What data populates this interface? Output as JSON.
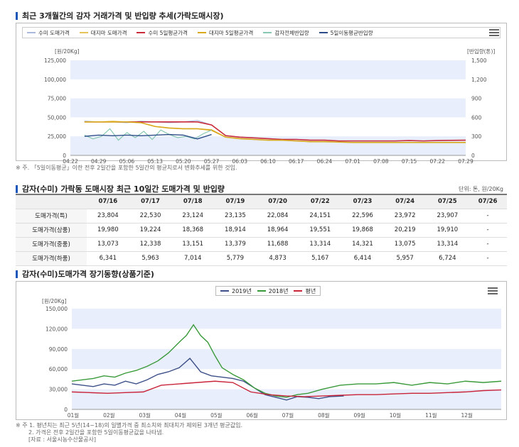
{
  "section1": {
    "title": "최근 3개월간의 감자 거래가격 및 반입량 추세(가락도매시장)",
    "note": "※ 주. 「5일이동평균」이란 전후 2일간을 포함한 5일간의 평균치로서 변화추세를 위한 것임."
  },
  "section2": {
    "title": "감자(수미) 가락동 도매시장 최근 10일간 도매가격 및 반입량",
    "unit": "단위: 톤, 원/20Kg",
    "headers": [
      "",
      "07/16",
      "07/17",
      "07/18",
      "07/19",
      "07/20",
      "07/22",
      "07/23",
      "07/24",
      "07/25",
      "07/26"
    ],
    "rows": [
      {
        "label": "도매가격(특)",
        "values": [
          "23,804",
          "22,530",
          "23,124",
          "23,135",
          "22,084",
          "24,151",
          "22,596",
          "23,972",
          "23,907",
          "-"
        ]
      },
      {
        "label": "도매가격(상품)",
        "values": [
          "19,980",
          "19,224",
          "18,368",
          "18,914",
          "18,964",
          "19,551",
          "19,868",
          "20,219",
          "19,910",
          "-"
        ]
      },
      {
        "label": "도매가격(중품)",
        "values": [
          "13,073",
          "12,338",
          "13,151",
          "13,379",
          "11,688",
          "13,314",
          "14,321",
          "13,075",
          "13,314",
          "-"
        ]
      },
      {
        "label": "도매가격(하품)",
        "values": [
          "6,341",
          "5,963",
          "7,014",
          "5,779",
          "4,873",
          "5,167",
          "6,414",
          "5,957",
          "6,724",
          "-"
        ]
      }
    ]
  },
  "section3": {
    "title": "감자(수미)도매가격 장기동향(상품기준)",
    "note1": "※ 주 1. 평년치는 최근 5년(14~18)의 일별가격 중 최소치와 최대치가 제외된 3개년 평균값임.",
    "note2": "2. 가격은 전후 2일간을 포함한 5일이동평균값을 나타냄.",
    "note3": "[자료 : 서울시농수산물공사]"
  },
  "colors": {
    "sumi": "#aab8dd",
    "daejima": "#e8c35a",
    "sumi_ma": "#c92b3a",
    "daejima_ma": "#d9a71a",
    "arrival": "#88c8b0",
    "arrival_ma": "#2c4d8a",
    "y2019": "#3d4f88",
    "y2018": "#3a9a3a",
    "normal": "#c9243a",
    "band": "#e8eefb"
  },
  "chart_data": [
    {
      "type": "line",
      "legend": [
        "수미 도매가격",
        "대지마 도매가격",
        "수미 5일평균가격",
        "대지마 5일평균가격",
        "감자전체반입량",
        "5일이동평균반입량"
      ],
      "ylabel": "[원/20Kg]",
      "ylabel_right": "[반입량(톤)]",
      "y_ticks": [
        "0",
        "25,000",
        "50,000",
        "75,000",
        "100,000",
        "125,000"
      ],
      "y2_ticks": [
        "0",
        "300",
        "600",
        "900",
        "1,200",
        "1,500"
      ],
      "ylim": [
        0,
        125000
      ],
      "y2lim": [
        0,
        1500
      ],
      "x_ticks": [
        "04.22",
        "04.29",
        "05.06",
        "05.13",
        "05.20",
        "05.27",
        "06.03",
        "06.10",
        "06.17",
        "06.24",
        "07.01",
        "07.08",
        "07.15",
        "07.22",
        "07.29"
      ],
      "series": [
        {
          "name": "수미 도매가격",
          "axis": "left",
          "x": [
            0.5,
            1,
            1.5,
            2,
            2.5,
            3,
            3.5,
            4,
            4.5,
            5,
            5.5,
            6,
            6.5,
            7,
            7.5,
            8,
            8.5,
            9,
            9.5,
            10,
            10.5,
            11,
            11.5,
            12,
            12.5,
            13,
            13.5,
            14
          ],
          "values": [
            45000,
            44000,
            44000,
            43000,
            45000,
            44000,
            43000,
            44000,
            46000,
            40000,
            26000,
            24000,
            23000,
            22000,
            21000,
            21000,
            20000,
            20000,
            19000,
            19000,
            19000,
            19000,
            19000,
            19500,
            19000,
            19500,
            19800,
            20000
          ]
        },
        {
          "name": "대지마 도매가격",
          "axis": "left",
          "x": [
            0.5,
            1,
            1.5,
            2,
            2.5,
            3,
            3.5,
            4,
            4.5,
            5,
            5.5,
            6,
            6.5,
            7,
            7.5,
            8,
            8.5,
            9,
            9.5,
            10,
            10.5,
            11,
            11.5,
            12,
            12.5,
            13,
            13.5,
            14
          ],
          "values": [
            44000,
            44000,
            45000,
            44000,
            43000,
            38000,
            36000,
            35000,
            35000,
            34000,
            24000,
            22000,
            21000,
            20000,
            20000,
            19000,
            18000,
            18000,
            17500,
            17000,
            17000,
            17000,
            17000,
            17000,
            17000,
            17000,
            17000,
            17000
          ]
        },
        {
          "name": "수미 5일평균가격",
          "axis": "left",
          "x": [
            0.5,
            1,
            1.5,
            2,
            2.5,
            3,
            3.5,
            4,
            4.5,
            5,
            5.5,
            6,
            6.5,
            7,
            7.5,
            8,
            8.5,
            9,
            9.5,
            10,
            10.5,
            11,
            11.5,
            12,
            12.5,
            13,
            13.5,
            14
          ],
          "values": [
            44000,
            44000,
            44000,
            44000,
            44000,
            44000,
            44000,
            44000,
            44000,
            40000,
            26000,
            24000,
            23000,
            22000,
            21000,
            21000,
            20000,
            20000,
            19000,
            19000,
            19000,
            19000,
            19000,
            19500,
            19000,
            19500,
            19800,
            20000
          ]
        },
        {
          "name": "대지마 5일평균가격",
          "axis": "left",
          "x": [
            0.5,
            1,
            1.5,
            2,
            2.5,
            3,
            3.5,
            4,
            4.5,
            5,
            5.5,
            6,
            6.5,
            7,
            7.5,
            8,
            8.5,
            9,
            9.5,
            10,
            10.5,
            11,
            11.5,
            12,
            12.5,
            13,
            13.5,
            14
          ],
          "values": [
            44000,
            44000,
            44000,
            44000,
            43000,
            38000,
            36000,
            35000,
            35000,
            33000,
            24000,
            22000,
            21000,
            20000,
            20000,
            19000,
            18000,
            18000,
            17500,
            17000,
            17000,
            17000,
            17000,
            17000,
            17000,
            17000,
            17000,
            17000
          ]
        },
        {
          "name": "감자전체반입량",
          "axis": "right",
          "x": [
            0.5,
            0.8,
            1.1,
            1.4,
            1.7,
            2,
            2.3,
            2.6,
            2.9,
            3.2,
            3.5,
            3.8,
            4.1,
            4.4,
            4.7,
            5
          ],
          "values": [
            320,
            260,
            300,
            420,
            240,
            360,
            280,
            380,
            250,
            400,
            330,
            280,
            300,
            260,
            340,
            400
          ]
        },
        {
          "name": "5일이동평균반입량",
          "axis": "right",
          "x": [
            0.5,
            1,
            1.5,
            2,
            2.5,
            3,
            3.5,
            4,
            4.5,
            5
          ],
          "values": [
            300,
            320,
            310,
            320,
            310,
            320,
            330,
            320,
            260,
            330
          ]
        }
      ]
    },
    {
      "type": "line",
      "legend": [
        "2019년",
        "2018년",
        "평년"
      ],
      "ylabel": "[원/20Kg]",
      "y_ticks": [
        "0",
        "30,000",
        "60,000",
        "90,000",
        "120,000",
        "150,000"
      ],
      "ylim": [
        0,
        150000
      ],
      "x_ticks": [
        "01월",
        "02월",
        "03월",
        "04월",
        "05월",
        "06월",
        "07월",
        "08월",
        "09월",
        "10월",
        "11월",
        "12월"
      ],
      "series": [
        {
          "name": "2019년",
          "x": [
            1,
            1.3,
            1.6,
            1.9,
            2.2,
            2.5,
            2.8,
            3.1,
            3.4,
            3.7,
            4.0,
            4.3,
            4.6,
            4.9,
            5.2,
            5.5,
            5.8,
            6.1,
            6.4,
            6.7,
            7.0,
            7.3,
            7.6,
            7.9,
            8.2,
            8.6
          ],
          "values": [
            38000,
            36000,
            34000,
            38000,
            36000,
            42000,
            38000,
            44000,
            52000,
            56000,
            62000,
            76000,
            56000,
            50000,
            48000,
            46000,
            42000,
            32000,
            22000,
            18000,
            14000,
            19000,
            18000,
            16000,
            19000,
            20000
          ]
        },
        {
          "name": "2018년",
          "x": [
            1,
            1.3,
            1.6,
            1.9,
            2.2,
            2.5,
            2.8,
            3.1,
            3.4,
            3.7,
            4.0,
            4.2,
            4.4,
            4.6,
            4.8,
            5.0,
            5.2,
            5.5,
            5.8,
            6.1,
            6.4,
            6.7,
            7.0,
            7.3,
            7.6,
            8.0,
            8.5,
            9.0,
            9.5,
            10.0,
            10.5,
            11.0,
            11.5,
            12.0,
            12.5,
            13.0
          ],
          "values": [
            42000,
            44000,
            46000,
            50000,
            48000,
            54000,
            58000,
            64000,
            72000,
            84000,
            100000,
            110000,
            126000,
            110000,
            100000,
            80000,
            62000,
            52000,
            44000,
            32000,
            24000,
            20000,
            18000,
            22000,
            24000,
            30000,
            36000,
            38000,
            38000,
            40000,
            36000,
            40000,
            38000,
            42000,
            40000,
            42000
          ]
        },
        {
          "name": "평년",
          "x": [
            1,
            1.5,
            2,
            2.5,
            3,
            3.5,
            4,
            4.5,
            5,
            5.5,
            6,
            6.5,
            7,
            7.5,
            8,
            8.5,
            9,
            9.5,
            10,
            10.5,
            11,
            11.5,
            12,
            12.5,
            13
          ],
          "values": [
            26000,
            25000,
            24000,
            25000,
            26000,
            36000,
            38000,
            40000,
            42000,
            40000,
            26000,
            22000,
            20000,
            19000,
            20000,
            21000,
            22000,
            22000,
            23000,
            24000,
            24000,
            25000,
            26000,
            28000,
            29000
          ]
        }
      ]
    }
  ]
}
